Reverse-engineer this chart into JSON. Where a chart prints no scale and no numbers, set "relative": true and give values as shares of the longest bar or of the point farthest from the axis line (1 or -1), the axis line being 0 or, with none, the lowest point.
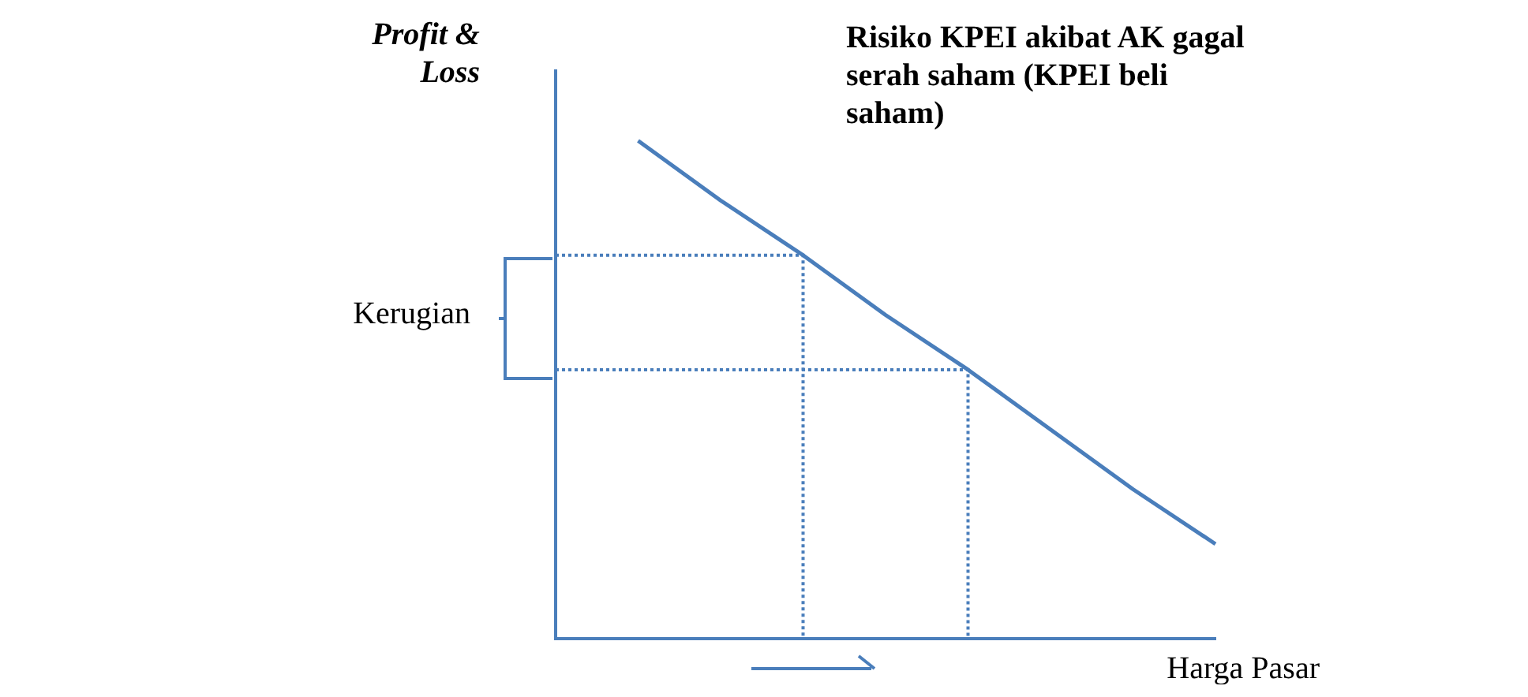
{
  "chart_data": {
    "type": "line",
    "title": "Risiko KPEI akibat AK gagal serah saham (KPEI beli saham)",
    "xlabel": "Harga Pasar",
    "ylabel": "Profit & Loss",
    "relative": true,
    "categories": [
      null,
      null,
      null,
      null,
      null,
      null,
      null,
      null,
      null
    ],
    "series": [
      {
        "color": "#4a7ebb",
        "values": [
          null,
          1,
          0.88,
          0.77,
          0.65,
          0.54,
          0.42,
          0.3,
          0.19
        ]
      }
    ],
    "ref_lines": [
      {
        "axis": "y",
        "value": 0.77,
        "color": "#4a7ebb",
        "line_style": "dotted"
      },
      {
        "axis": "y",
        "value": 0.54,
        "color": "#4a7ebb",
        "line_style": "dotted"
      }
    ],
    "annotations": [
      "Kerugian"
    ],
    "legend": false,
    "grid": false,
    "marker": "none"
  }
}
